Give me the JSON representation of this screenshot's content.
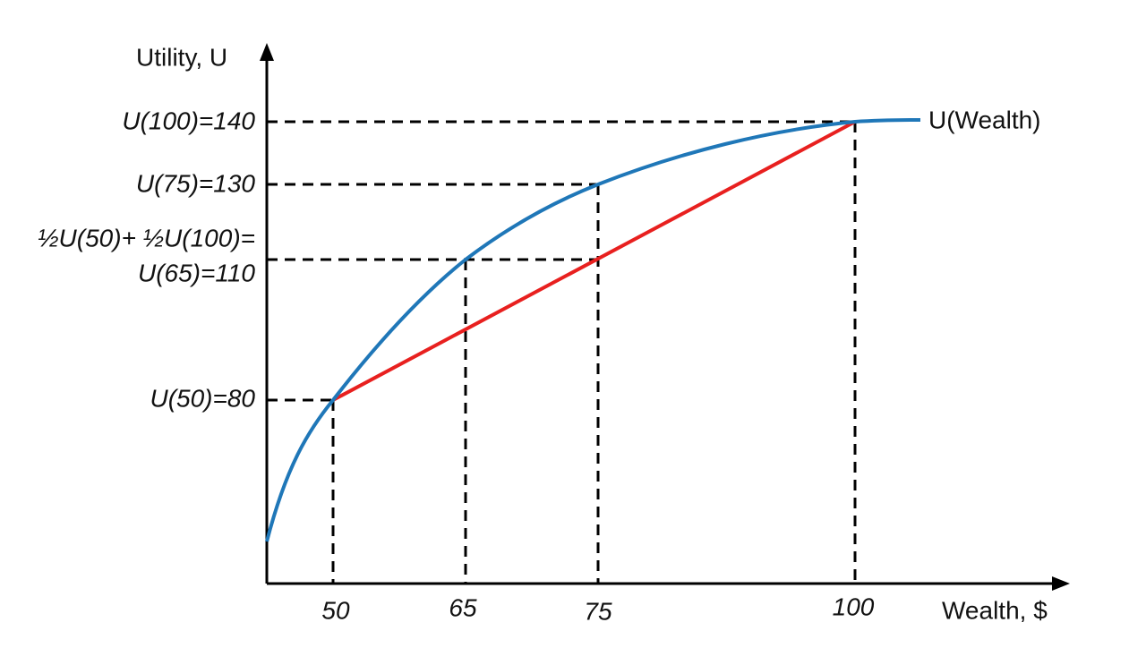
{
  "axes": {
    "y_label": "Utility, U",
    "x_label": "Wealth, $"
  },
  "curve_label": "U(Wealth)",
  "y_labels": [
    "U(100)=140",
    "U(75)=130",
    "½U(50)+ ½U(100)=",
    "U(65)=110",
    "U(50)=80"
  ],
  "x_labels": [
    "50",
    "65",
    "75",
    "100"
  ]
}
